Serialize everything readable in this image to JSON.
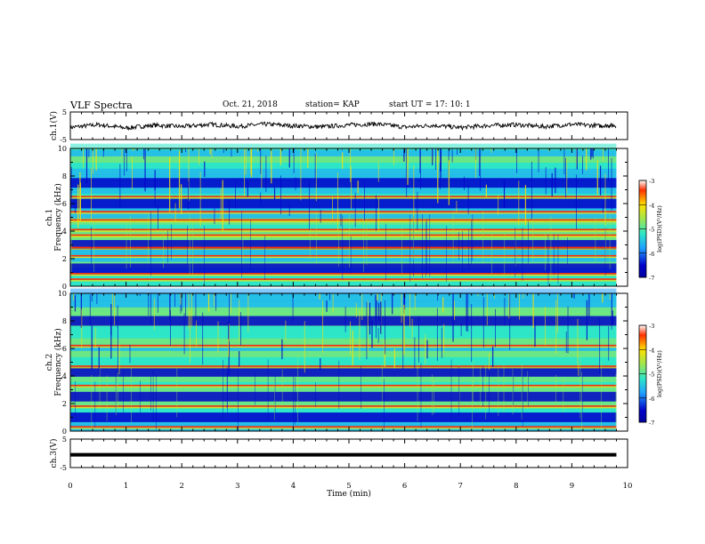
{
  "header": {
    "title": "VLF Spectra",
    "date": "Oct. 21, 2018",
    "station": "station= KAP",
    "start": "start  UT =   17: 10: 1"
  },
  "chart_data": [
    {
      "type": "line",
      "panel": "ch1-waveform",
      "ylabel": "ch.1(V)",
      "ylim": [
        -5,
        5
      ],
      "yticks": [
        "5",
        "-5"
      ],
      "x": [
        0,
        0.5,
        1,
        1.5,
        2,
        2.5,
        3,
        3.5,
        4,
        4.5,
        5,
        5.5,
        6,
        6.5,
        7,
        7.5,
        8,
        8.5,
        9,
        9.5,
        9.8
      ],
      "y": [
        -0.6,
        0.4,
        -0.8,
        0.2,
        -0.3,
        0.5,
        -0.2,
        0.6,
        0.0,
        -0.4,
        0.3,
        0.7,
        -0.5,
        0.2,
        -0.7,
        0.1,
        0.4,
        -0.3,
        0.5,
        0.0,
        0.2
      ]
    },
    {
      "type": "heatmap",
      "panel": "ch1-spectrogram",
      "ylabel": "ch.1\nFrequency (kHz)",
      "ylim": [
        0,
        10
      ],
      "yticks": [
        "0",
        "2",
        "4",
        "6",
        "8",
        "10"
      ],
      "colorbar": {
        "label": "log(PSD)(V²/Hz)",
        "range": [
          -7,
          -3
        ],
        "ticks": [
          "-3",
          "-4",
          "-5",
          "-6",
          "-7"
        ]
      },
      "bands_khz": [
        0.5,
        0.9,
        2.2,
        2.8,
        3.7,
        4.1,
        4.8,
        5.4,
        6.5
      ],
      "quiet_khz": [
        1.3,
        3.0,
        6.0,
        7.5
      ]
    },
    {
      "type": "heatmap",
      "panel": "ch2-spectrogram",
      "ylabel": "ch.2\nFrequency (kHz)",
      "ylim": [
        0,
        10
      ],
      "yticks": [
        "0",
        "2",
        "4",
        "6",
        "8",
        "10"
      ],
      "colorbar": {
        "label": "log(PSD)(V²/Hz)",
        "range": [
          -7,
          -3
        ],
        "ticks": [
          "-3",
          "-4",
          "-5",
          "-6",
          "-7"
        ]
      },
      "bands_khz": [
        0.3,
        1.8,
        3.3,
        4.7,
        6.2
      ],
      "quiet_khz": [
        1.0,
        2.5,
        4.3,
        8.0
      ]
    },
    {
      "type": "line",
      "panel": "ch3-waveform",
      "ylabel": "ch.3(V)",
      "ylim": [
        -5,
        5
      ],
      "yticks": [
        "5",
        "-5"
      ],
      "x": [
        0,
        9.8
      ],
      "y": [
        -0.5,
        -0.5
      ]
    }
  ],
  "xaxis": {
    "label": "Time  (min)",
    "ticks": [
      "0",
      "1",
      "2",
      "3",
      "4",
      "5",
      "6",
      "7",
      "8",
      "9",
      "10"
    ],
    "xlim": [
      0,
      10
    ]
  },
  "colors": {
    "low": "#0000c8",
    "mid_low": "#1ea0ff",
    "mid": "#2ee6c8",
    "mid_high": "#9ee650",
    "high": "#ffe000",
    "peak": "#ff3000"
  }
}
